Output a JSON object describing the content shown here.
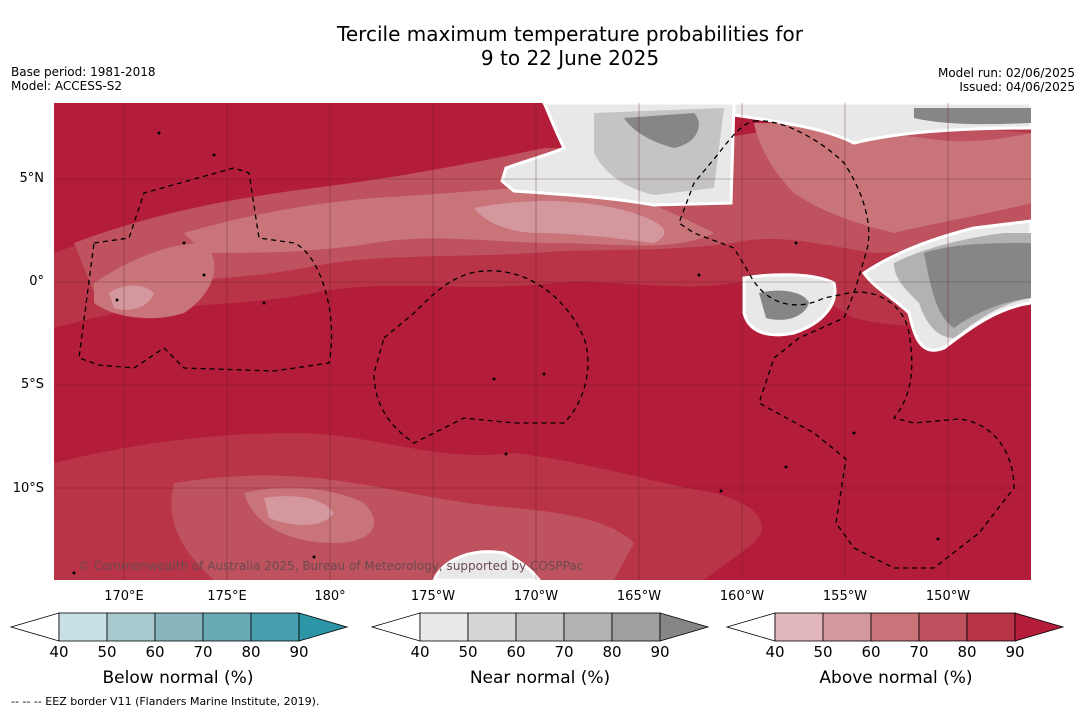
{
  "title_line1": "Tercile maximum temperature probabilities for",
  "title_line2": "9 to 22 June 2025",
  "meta_left": [
    "Base period: 1981-2018",
    "Model: ACCESS-S2"
  ],
  "meta_right": [
    "Model run: 02/06/2025",
    "Issued: 04/06/2025"
  ],
  "lat_labels": [
    "5°N",
    "0°",
    "5°S",
    "10°S"
  ],
  "lon_labels": [
    "170°E",
    "175°E",
    "180°",
    "175°W",
    "170°W",
    "165°W",
    "160°W",
    "155°W",
    "150°W"
  ],
  "copyright": "© Commonwealth of Australia 2025, Bureau of Meteorology, supported by COSPPac",
  "colorbars": [
    {
      "label": "Below normal (%)",
      "ticks": [
        "40",
        "50",
        "60",
        "70",
        "80",
        "90"
      ],
      "colors": [
        "#c7e1e6",
        "#a7c8cd",
        "#89b5bf",
        "#6aaab5",
        "#4a9fae",
        "#2e95a6"
      ]
    },
    {
      "label": "Near normal (%)",
      "ticks": [
        "40",
        "50",
        "60",
        "70",
        "80",
        "90"
      ],
      "colors": [
        "#e8e8e8",
        "#d6d6d6",
        "#c4c4c4",
        "#b2b2b2",
        "#a0a0a0",
        "#868686"
      ]
    },
    {
      "label": "Above normal (%)",
      "ticks": [
        "40",
        "50",
        "60",
        "70",
        "80",
        "90"
      ],
      "colors": [
        "#e1b6bb",
        "#d4979e",
        "#c87479",
        "#be525e",
        "#b83446",
        "#b41d3a"
      ]
    }
  ],
  "footnote": "-- -- -- EEZ border V11 (Flanders Marine Institute, 2019)."
}
